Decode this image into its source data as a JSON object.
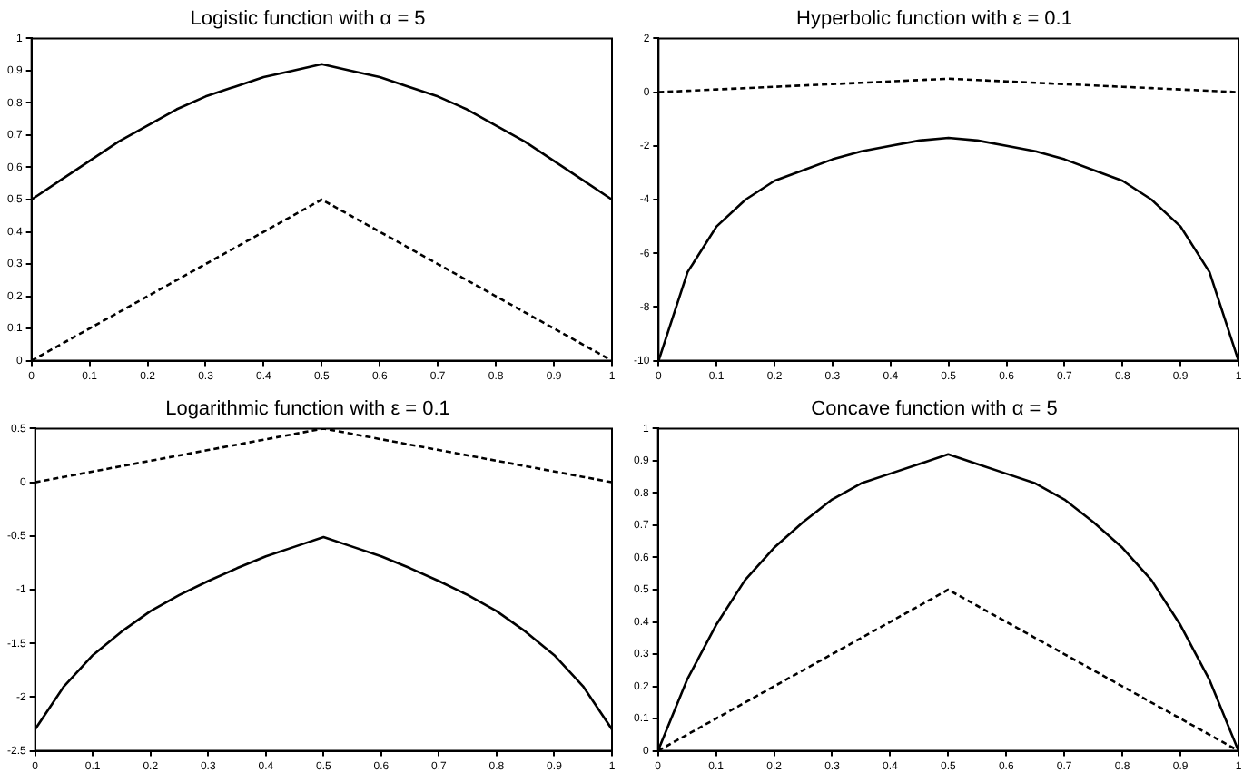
{
  "chart_data": [
    {
      "type": "line",
      "title": "Logistic function with α = 5",
      "x": [
        0,
        0.05,
        0.1,
        0.15,
        0.2,
        0.25,
        0.3,
        0.35,
        0.4,
        0.45,
        0.5,
        0.55,
        0.6,
        0.65,
        0.7,
        0.75,
        0.8,
        0.85,
        0.9,
        0.95,
        1
      ],
      "xlim": [
        0,
        1
      ],
      "xticks": [
        0,
        0.1,
        0.2,
        0.3,
        0.4,
        0.5,
        0.6,
        0.7,
        0.8,
        0.9,
        1
      ],
      "ylim": [
        0,
        1
      ],
      "yticks": [
        0,
        0.1,
        0.2,
        0.3,
        0.4,
        0.5,
        0.6,
        0.7,
        0.8,
        0.9,
        1
      ],
      "grid": false,
      "legend": false,
      "series": [
        {
          "color": "#000000",
          "line_style": "solid",
          "values": [
            0.5,
            0.56,
            0.62,
            0.68,
            0.73,
            0.78,
            0.82,
            0.85,
            0.88,
            0.9,
            0.92,
            0.9,
            0.88,
            0.85,
            0.82,
            0.78,
            0.73,
            0.68,
            0.62,
            0.56,
            0.5
          ]
        },
        {
          "color": "#000000",
          "line_style": "dashed",
          "values": [
            0,
            0.05,
            0.1,
            0.15,
            0.2,
            0.25,
            0.3,
            0.35,
            0.4,
            0.45,
            0.5,
            0.45,
            0.4,
            0.35,
            0.3,
            0.25,
            0.2,
            0.15,
            0.1,
            0.05,
            0
          ]
        }
      ]
    },
    {
      "type": "line",
      "title": "Hyperbolic function with ε = 0.1",
      "x": [
        0,
        0.05,
        0.1,
        0.15,
        0.2,
        0.25,
        0.3,
        0.35,
        0.4,
        0.45,
        0.5,
        0.55,
        0.6,
        0.65,
        0.7,
        0.75,
        0.8,
        0.85,
        0.9,
        0.95,
        1
      ],
      "xlim": [
        0,
        1
      ],
      "xticks": [
        0,
        0.1,
        0.2,
        0.3,
        0.4,
        0.5,
        0.6,
        0.7,
        0.8,
        0.9,
        1
      ],
      "ylim": [
        -10,
        2
      ],
      "yticks": [
        -10,
        -8,
        -6,
        -4,
        -2,
        0,
        2
      ],
      "grid": false,
      "legend": false,
      "series": [
        {
          "color": "#000000",
          "line_style": "solid",
          "values": [
            -10,
            -6.7,
            -5,
            -4,
            -3.3,
            -2.9,
            -2.5,
            -2.2,
            -2,
            -1.8,
            -1.7,
            -1.8,
            -2,
            -2.2,
            -2.5,
            -2.9,
            -3.3,
            -4,
            -5,
            -6.7,
            -10
          ]
        },
        {
          "color": "#000000",
          "line_style": "dashed",
          "values": [
            0,
            0.05,
            0.1,
            0.15,
            0.2,
            0.25,
            0.3,
            0.35,
            0.4,
            0.45,
            0.5,
            0.45,
            0.4,
            0.35,
            0.3,
            0.25,
            0.2,
            0.15,
            0.1,
            0.05,
            0
          ]
        }
      ]
    },
    {
      "type": "line",
      "title": "Logarithmic function with ε = 0.1",
      "x": [
        0,
        0.05,
        0.1,
        0.15,
        0.2,
        0.25,
        0.3,
        0.35,
        0.4,
        0.45,
        0.5,
        0.55,
        0.6,
        0.65,
        0.7,
        0.75,
        0.8,
        0.85,
        0.9,
        0.95,
        1
      ],
      "xlim": [
        0,
        1
      ],
      "xticks": [
        0,
        0.1,
        0.2,
        0.3,
        0.4,
        0.5,
        0.6,
        0.7,
        0.8,
        0.9,
        1
      ],
      "ylim": [
        -2.5,
        0.5
      ],
      "yticks": [
        -2.5,
        -2,
        -1.5,
        -1,
        -0.5,
        0,
        0.5
      ],
      "grid": false,
      "legend": false,
      "series": [
        {
          "color": "#000000",
          "line_style": "solid",
          "values": [
            -2.3,
            -1.9,
            -1.61,
            -1.39,
            -1.2,
            -1.05,
            -0.92,
            -0.8,
            -0.69,
            -0.6,
            -0.51,
            -0.6,
            -0.69,
            -0.8,
            -0.92,
            -1.05,
            -1.2,
            -1.39,
            -1.61,
            -1.9,
            -2.3
          ]
        },
        {
          "color": "#000000",
          "line_style": "dashed",
          "values": [
            0,
            0.05,
            0.1,
            0.15,
            0.2,
            0.25,
            0.3,
            0.35,
            0.4,
            0.45,
            0.5,
            0.45,
            0.4,
            0.35,
            0.3,
            0.25,
            0.2,
            0.15,
            0.1,
            0.05,
            0
          ]
        }
      ]
    },
    {
      "type": "line",
      "title": "Concave function with α = 5",
      "x": [
        0,
        0.05,
        0.1,
        0.15,
        0.2,
        0.25,
        0.3,
        0.35,
        0.4,
        0.45,
        0.5,
        0.55,
        0.6,
        0.65,
        0.7,
        0.75,
        0.8,
        0.85,
        0.9,
        0.95,
        1
      ],
      "xlim": [
        0,
        1
      ],
      "xticks": [
        0,
        0.1,
        0.2,
        0.3,
        0.4,
        0.5,
        0.6,
        0.7,
        0.8,
        0.9,
        1
      ],
      "ylim": [
        0,
        1
      ],
      "yticks": [
        0,
        0.1,
        0.2,
        0.3,
        0.4,
        0.5,
        0.6,
        0.7,
        0.8,
        0.9,
        1
      ],
      "grid": false,
      "legend": false,
      "series": [
        {
          "color": "#000000",
          "line_style": "solid",
          "values": [
            0,
            0.22,
            0.39,
            0.53,
            0.63,
            0.71,
            0.78,
            0.83,
            0.86,
            0.89,
            0.92,
            0.89,
            0.86,
            0.83,
            0.78,
            0.71,
            0.63,
            0.53,
            0.39,
            0.22,
            0
          ]
        },
        {
          "color": "#000000",
          "line_style": "dashed",
          "values": [
            0,
            0.05,
            0.1,
            0.15,
            0.2,
            0.25,
            0.3,
            0.35,
            0.4,
            0.45,
            0.5,
            0.45,
            0.4,
            0.35,
            0.3,
            0.25,
            0.2,
            0.15,
            0.1,
            0.05,
            0
          ]
        }
      ]
    }
  ]
}
